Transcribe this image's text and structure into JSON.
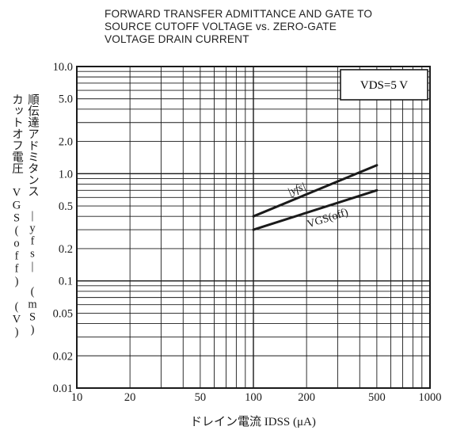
{
  "title_lines": [
    "FORWARD TRANSFER ADMITTANCE AND GATE TO",
    "SOURCE CUTOFF VOLTAGE vs. ZERO-GATE",
    "VOLTAGE DRAIN CURRENT"
  ],
  "ylabel_lines": [
    "カットオフ電圧 VGS(off) (V)",
    "順伝達アドミタンス |yfs| (mS)"
  ],
  "xlabel": "ドレイン電流 IDSS (μA)",
  "condition": "VDS=5 V",
  "chart_data": {
    "type": "line",
    "xscale": "log",
    "yscale": "log",
    "xlim": [
      10,
      1000
    ],
    "ylim": [
      0.01,
      10
    ],
    "grid": true,
    "x_ticks": [
      "10",
      "20",
      "50",
      "100",
      "200",
      "500",
      "1000"
    ],
    "y_ticks": [
      "0.01",
      "0.02",
      "0.05",
      "0.1",
      "0.2",
      "0.5",
      "1.0",
      "2.0",
      "5.0",
      "10.0"
    ],
    "series": [
      {
        "name": "|yfs|",
        "x": [
          100,
          500
        ],
        "y": [
          0.4,
          1.2
        ]
      },
      {
        "name": "VGS(off)",
        "x": [
          100,
          500
        ],
        "y": [
          0.3,
          0.7
        ]
      }
    ]
  }
}
